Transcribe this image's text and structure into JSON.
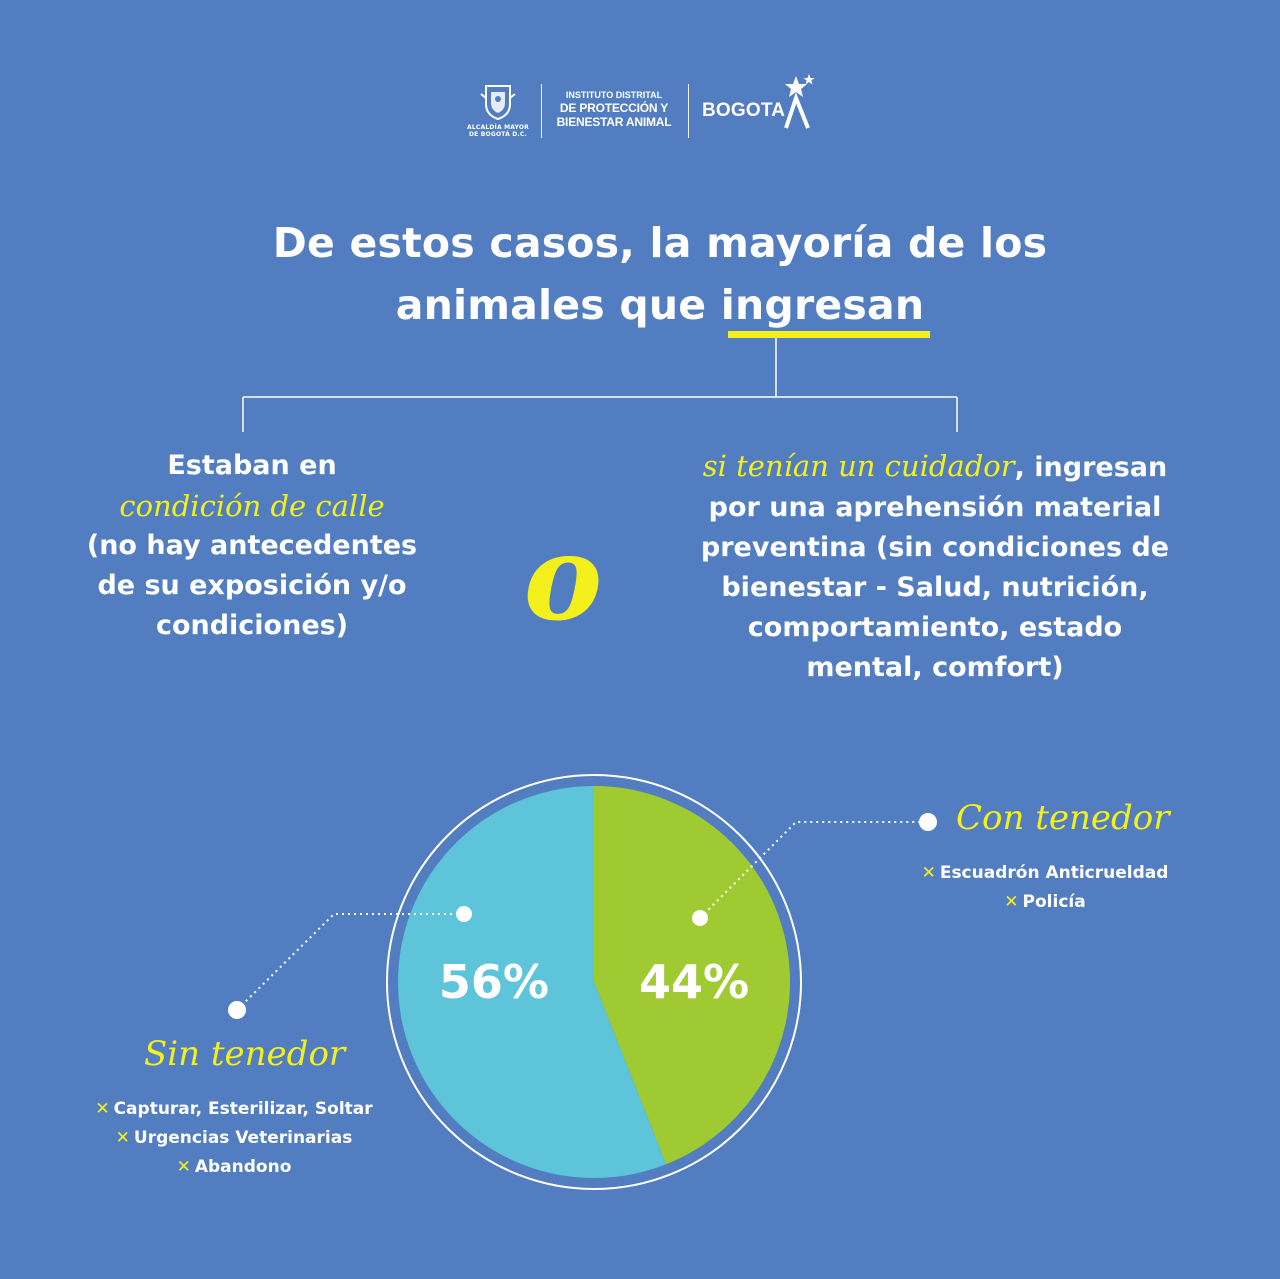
{
  "header": {
    "crest_text_1": "ALCALDÍA MAYOR",
    "crest_text_2": "DE BOGOTÁ D.C.",
    "institute_line1": "INSTITUTO DISTRITAL",
    "institute_line2": "DE PROTECCIÓN Y",
    "institute_line3": "BIENESTAR ANIMAL",
    "city": "BOGOTA"
  },
  "title": {
    "line1": "De estos casos, la mayoría de los",
    "line2_pre": "animales que ",
    "line2_emph": "ingresan"
  },
  "left_option": {
    "line1": "Estaban en",
    "emphasis": "condición de calle",
    "line3": "(no hay antecedentes",
    "line4": "de su exposición y/o",
    "line5": "condiciones)"
  },
  "separator": "o",
  "right_option": {
    "emphasis": "si tenían un cuidador",
    "rest_line1": ", ingresan",
    "line2": "por una aprehensión material",
    "line3": "preventina (sin condiciones de",
    "line4": "bienestar - Salud, nutrición,",
    "line5": "comportamiento, estado",
    "line6": "mental, comfort)"
  },
  "chart_data": {
    "type": "pie",
    "categories": [
      "Sin tenedor",
      "Con tenedor"
    ],
    "values": [
      56,
      44
    ],
    "labels": [
      "56%",
      "44%"
    ],
    "colors": [
      "#5ec4d9",
      "#a0ca31"
    ],
    "title": "",
    "details": {
      "Sin tenedor": [
        "Capturar, Esterilizar, Soltar",
        "Urgencias Veterinarias",
        "Abandono"
      ],
      "Con tenedor": [
        "Escuadrón Anticrueldad",
        "Policía"
      ]
    }
  },
  "colors": {
    "background": "#527dc1",
    "accent_yellow": "#f3f01c",
    "text": "#ffffff"
  }
}
